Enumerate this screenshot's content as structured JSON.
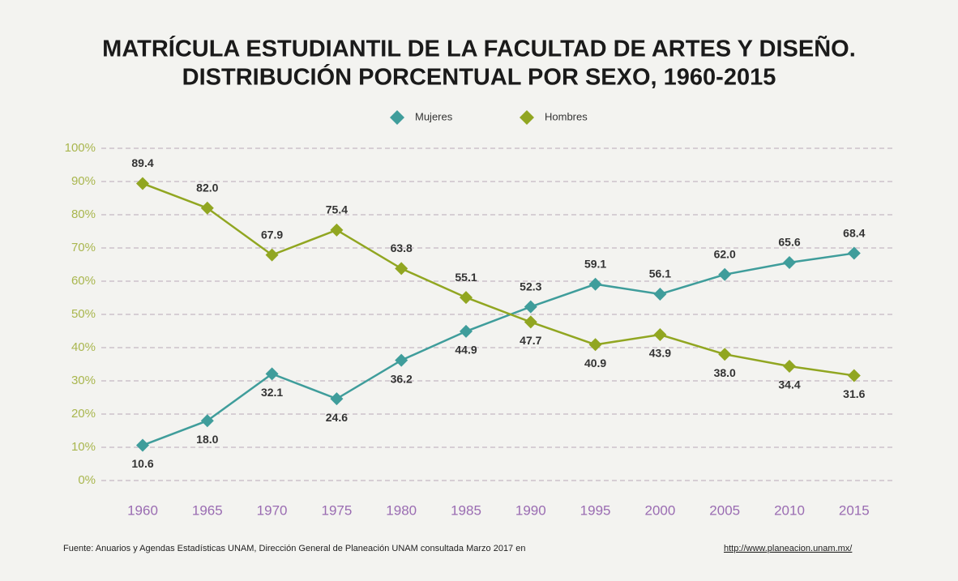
{
  "chart_data": {
    "type": "line",
    "title": [
      "MATRÍCULA ESTUDIANTIL DE LA FACULTAD DE ARTES Y DISEÑO.",
      "DISTRIBUCIÓN PORCENTUAL POR SEXO, 1960-2015"
    ],
    "categories": [
      "1960",
      "1965",
      "1970",
      "1975",
      "1980",
      "1985",
      "1990",
      "1995",
      "2000",
      "2005",
      "2010",
      "2015"
    ],
    "series": [
      {
        "name": "Mujeres",
        "color": "#3f9d9b",
        "values": [
          10.6,
          18.0,
          32.1,
          24.6,
          36.2,
          44.9,
          52.3,
          59.1,
          56.1,
          62.0,
          65.6,
          68.4
        ],
        "value_labels": [
          "10.6",
          "18.0",
          "32.1",
          "24.6",
          "36.2",
          "44.9",
          "52.3",
          "59.1",
          "56.1",
          "62.0",
          "65.6",
          "68.4"
        ]
      },
      {
        "name": "Hombres",
        "color": "#91a621",
        "values": [
          89.4,
          82.0,
          67.9,
          75.4,
          63.8,
          55.1,
          47.7,
          40.9,
          43.9,
          38.0,
          34.4,
          31.6
        ],
        "value_labels": [
          "89.4",
          "82.0",
          "67.9",
          "75.4",
          "63.8",
          "55.1",
          "47.7",
          "40.9",
          "43.9",
          "38.0",
          "34.4",
          "31.6"
        ]
      }
    ],
    "ylim": [
      0,
      100
    ],
    "yticks": [
      {
        "value": 0,
        "label": "0%"
      },
      {
        "value": 10,
        "label": "10%"
      },
      {
        "value": 20,
        "label": "20%"
      },
      {
        "value": 30,
        "label": "30%"
      },
      {
        "value": 40,
        "label": "40%"
      },
      {
        "value": 50,
        "label": "50%"
      },
      {
        "value": 60,
        "label": "60%"
      },
      {
        "value": 70,
        "label": "70%"
      },
      {
        "value": 80,
        "label": "80%"
      },
      {
        "value": 90,
        "label": "90%"
      },
      {
        "value": 100,
        "label": "100%"
      }
    ],
    "grid": true,
    "legend": "top",
    "source": "Fuente: Anuarios y Agendas Estadísticas UNAM, Dirección General de Planeación UNAM consultada Marzo 2017 en",
    "source_link": "http://www.planeacion.unam.mx/"
  }
}
